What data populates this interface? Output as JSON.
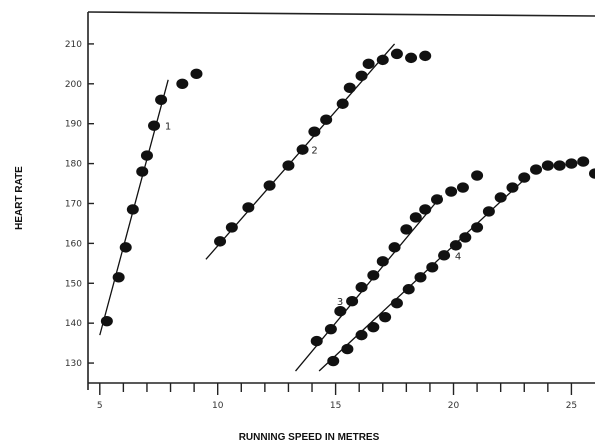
{
  "chart_data": {
    "type": "scatter",
    "title": "",
    "xlabel": "RUNNING SPEED IN METRES",
    "ylabel": "HEART RATE",
    "xlim": [
      4.5,
      26
    ],
    "ylim": [
      125,
      218
    ],
    "grid": false,
    "x_ticks": [
      5,
      10,
      15,
      20,
      25
    ],
    "x_tick_labels": [
      "5",
      "10",
      "15",
      "20",
      "25"
    ],
    "y_ticks": [
      130,
      140,
      150,
      160,
      170,
      180,
      190,
      200,
      210
    ],
    "y_tick_labels": [
      "130",
      "140",
      "150",
      "160",
      "170",
      "180",
      "190",
      "200",
      "210"
    ],
    "series": [
      {
        "label": "1",
        "color": "#111111",
        "points": [
          {
            "x": 5.3,
            "y": 140.5
          },
          {
            "x": 5.8,
            "y": 151.5
          },
          {
            "x": 6.1,
            "y": 159
          },
          {
            "x": 6.4,
            "y": 168.5
          },
          {
            "x": 6.8,
            "y": 178
          },
          {
            "x": 7.0,
            "y": 182
          },
          {
            "x": 7.3,
            "y": 189.5
          },
          {
            "x": 7.6,
            "y": 196
          },
          {
            "x": 8.5,
            "y": 200
          },
          {
            "x": 9.1,
            "y": 202.5
          }
        ],
        "fit": [
          {
            "x": 5.0,
            "y": 137
          },
          {
            "x": 7.9,
            "y": 201
          }
        ]
      },
      {
        "label": "2",
        "color": "#111111",
        "points": [
          {
            "x": 10.1,
            "y": 160.5
          },
          {
            "x": 10.6,
            "y": 164
          },
          {
            "x": 11.3,
            "y": 169
          },
          {
            "x": 12.2,
            "y": 174.5
          },
          {
            "x": 13.0,
            "y": 179.5
          },
          {
            "x": 13.6,
            "y": 183.5
          },
          {
            "x": 14.1,
            "y": 188
          },
          {
            "x": 14.6,
            "y": 191
          },
          {
            "x": 15.3,
            "y": 195
          },
          {
            "x": 15.6,
            "y": 199
          },
          {
            "x": 16.1,
            "y": 202
          },
          {
            "x": 16.4,
            "y": 205
          },
          {
            "x": 17.0,
            "y": 206
          },
          {
            "x": 17.6,
            "y": 207.5
          },
          {
            "x": 18.2,
            "y": 206.5
          },
          {
            "x": 18.8,
            "y": 207
          }
        ],
        "fit": [
          {
            "x": 9.5,
            "y": 156
          },
          {
            "x": 17.5,
            "y": 210
          }
        ]
      },
      {
        "label": "3",
        "color": "#111111",
        "points": [
          {
            "x": 14.2,
            "y": 135.5
          },
          {
            "x": 14.8,
            "y": 138.5
          },
          {
            "x": 15.2,
            "y": 143
          },
          {
            "x": 15.7,
            "y": 145.5
          },
          {
            "x": 16.1,
            "y": 149
          },
          {
            "x": 16.6,
            "y": 152
          },
          {
            "x": 17.0,
            "y": 155.5
          },
          {
            "x": 17.5,
            "y": 159
          },
          {
            "x": 18.0,
            "y": 163.5
          },
          {
            "x": 18.4,
            "y": 166.5
          },
          {
            "x": 18.8,
            "y": 168.5
          },
          {
            "x": 19.3,
            "y": 171
          },
          {
            "x": 19.9,
            "y": 173
          },
          {
            "x": 20.4,
            "y": 174
          },
          {
            "x": 21.0,
            "y": 177
          }
        ],
        "fit": [
          {
            "x": 13.3,
            "y": 128
          },
          {
            "x": 19.5,
            "y": 172
          }
        ]
      },
      {
        "label": "4",
        "color": "#111111",
        "points": [
          {
            "x": 14.9,
            "y": 130.5
          },
          {
            "x": 15.5,
            "y": 133.5
          },
          {
            "x": 16.1,
            "y": 137
          },
          {
            "x": 16.6,
            "y": 139
          },
          {
            "x": 17.1,
            "y": 141.5
          },
          {
            "x": 17.6,
            "y": 145
          },
          {
            "x": 18.1,
            "y": 148.5
          },
          {
            "x": 18.6,
            "y": 151.5
          },
          {
            "x": 19.1,
            "y": 154
          },
          {
            "x": 19.6,
            "y": 157
          },
          {
            "x": 20.1,
            "y": 159.5
          },
          {
            "x": 20.5,
            "y": 161.5
          },
          {
            "x": 21.0,
            "y": 164
          },
          {
            "x": 21.5,
            "y": 168
          },
          {
            "x": 22.0,
            "y": 171.5
          },
          {
            "x": 22.5,
            "y": 174
          },
          {
            "x": 23.0,
            "y": 176.5
          },
          {
            "x": 23.5,
            "y": 178.5
          },
          {
            "x": 24.0,
            "y": 179.5
          },
          {
            "x": 24.5,
            "y": 179.5
          },
          {
            "x": 25.0,
            "y": 180
          },
          {
            "x": 25.5,
            "y": 180.5
          },
          {
            "x": 26.0,
            "y": 177.5
          }
        ],
        "fit": [
          {
            "x": 14.3,
            "y": 128
          },
          {
            "x": 23.0,
            "y": 176
          }
        ]
      }
    ]
  }
}
